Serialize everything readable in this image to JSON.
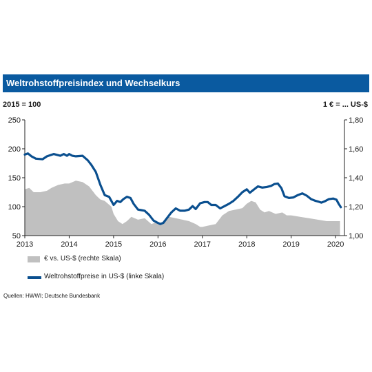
{
  "header": {
    "title": "Weltrohstoffpreisindex und Wechselkurs"
  },
  "units": {
    "left": "2015 = 100",
    "right": "1 € = ... US-$"
  },
  "legend": {
    "area": "€ vs. US-$ (rechte Skala)",
    "line": "Weltrohstoffpreise in US-$ (linke Skala)"
  },
  "source": "Quellen: HWWI; Deutsche Bundesbank",
  "colors": {
    "title_bar": "#0a5aa0",
    "line": "#0a4f8f",
    "area": "#c0c0c0"
  },
  "chart_data": {
    "type": "line",
    "left_axis": {
      "ylim": [
        50,
        250
      ],
      "ticks": [
        "50",
        "100",
        "150",
        "200",
        "250"
      ]
    },
    "right_axis": {
      "ylim": [
        1.0,
        1.8
      ],
      "ticks": [
        "1,00",
        "1,20",
        "1,40",
        "1,60",
        "1,80"
      ]
    },
    "x_axis": {
      "xlim": [
        2013.0,
        2020.2
      ],
      "ticks": [
        "2013",
        "2014",
        "2015",
        "2016",
        "2017",
        "2018",
        "2019",
        "2020"
      ]
    },
    "grid": false,
    "series": [
      {
        "name": "€ vs. US-$ (rechte Skala)",
        "type": "area",
        "axis": "right",
        "x": [
          2013.0,
          2013.1,
          2013.2,
          2013.35,
          2013.5,
          2013.6,
          2013.75,
          2013.9,
          2014.0,
          2014.15,
          2014.3,
          2014.45,
          2014.6,
          2014.7,
          2014.8,
          2014.95,
          2015.0,
          2015.1,
          2015.2,
          2015.3,
          2015.4,
          2015.55,
          2015.7,
          2015.85,
          2015.95,
          2016.1,
          2016.25,
          2016.4,
          2016.55,
          2016.7,
          2016.85,
          2016.95,
          2017.0,
          2017.15,
          2017.3,
          2017.45,
          2017.6,
          2017.75,
          2017.9,
          2018.0,
          2018.1,
          2018.2,
          2018.3,
          2018.4,
          2018.5,
          2018.65,
          2018.8,
          2018.9,
          2019.0,
          2019.2,
          2019.4,
          2019.6,
          2019.8,
          2020.0,
          2020.1
        ],
        "y": [
          1.32,
          1.33,
          1.3,
          1.3,
          1.31,
          1.33,
          1.35,
          1.36,
          1.36,
          1.38,
          1.37,
          1.34,
          1.28,
          1.25,
          1.24,
          1.2,
          1.15,
          1.1,
          1.08,
          1.1,
          1.13,
          1.11,
          1.12,
          1.08,
          1.09,
          1.09,
          1.13,
          1.12,
          1.11,
          1.1,
          1.08,
          1.06,
          1.06,
          1.07,
          1.08,
          1.14,
          1.17,
          1.18,
          1.19,
          1.22,
          1.24,
          1.23,
          1.18,
          1.16,
          1.17,
          1.15,
          1.16,
          1.14,
          1.14,
          1.13,
          1.12,
          1.11,
          1.1,
          1.1,
          1.1
        ]
      },
      {
        "name": "Weltrohstoffpreise in US-$ (linke Skala)",
        "type": "line",
        "axis": "left",
        "x": [
          2013.0,
          2013.07,
          2013.15,
          2013.25,
          2013.4,
          2013.5,
          2013.65,
          2013.8,
          2013.88,
          2013.95,
          2014.0,
          2014.07,
          2014.15,
          2014.3,
          2014.42,
          2014.5,
          2014.6,
          2014.7,
          2014.8,
          2014.9,
          2015.0,
          2015.08,
          2015.15,
          2015.22,
          2015.3,
          2015.38,
          2015.45,
          2015.55,
          2015.62,
          2015.7,
          2015.8,
          2015.9,
          2015.97,
          2016.05,
          2016.12,
          2016.2,
          2016.3,
          2016.4,
          2016.5,
          2016.6,
          2016.7,
          2016.78,
          2016.85,
          2016.95,
          2017.05,
          2017.12,
          2017.2,
          2017.3,
          2017.4,
          2017.5,
          2017.6,
          2017.7,
          2017.8,
          2017.9,
          2018.0,
          2018.07,
          2018.15,
          2018.25,
          2018.35,
          2018.45,
          2018.55,
          2018.62,
          2018.7,
          2018.78,
          2018.85,
          2018.95,
          2019.05,
          2019.15,
          2019.25,
          2019.35,
          2019.45,
          2019.55,
          2019.6,
          2019.68,
          2019.75,
          2019.85,
          2019.95,
          2020.02,
          2020.07,
          2020.12
        ],
        "y": [
          190,
          192,
          187,
          183,
          182,
          187,
          191,
          188,
          191,
          188,
          191,
          188,
          187,
          188,
          180,
          172,
          160,
          138,
          120,
          117,
          103,
          110,
          108,
          113,
          117,
          115,
          105,
          95,
          94,
          93,
          86,
          76,
          73,
          70,
          72,
          80,
          90,
          97,
          93,
          93,
          95,
          101,
          96,
          106,
          108,
          108,
          103,
          103,
          97,
          101,
          105,
          110,
          117,
          125,
          130,
          124,
          129,
          135,
          133,
          134,
          136,
          139,
          140,
          132,
          118,
          115,
          116,
          120,
          123,
          119,
          113,
          110,
          109,
          107,
          109,
          113,
          114,
          112,
          105,
          99
        ]
      }
    ]
  }
}
